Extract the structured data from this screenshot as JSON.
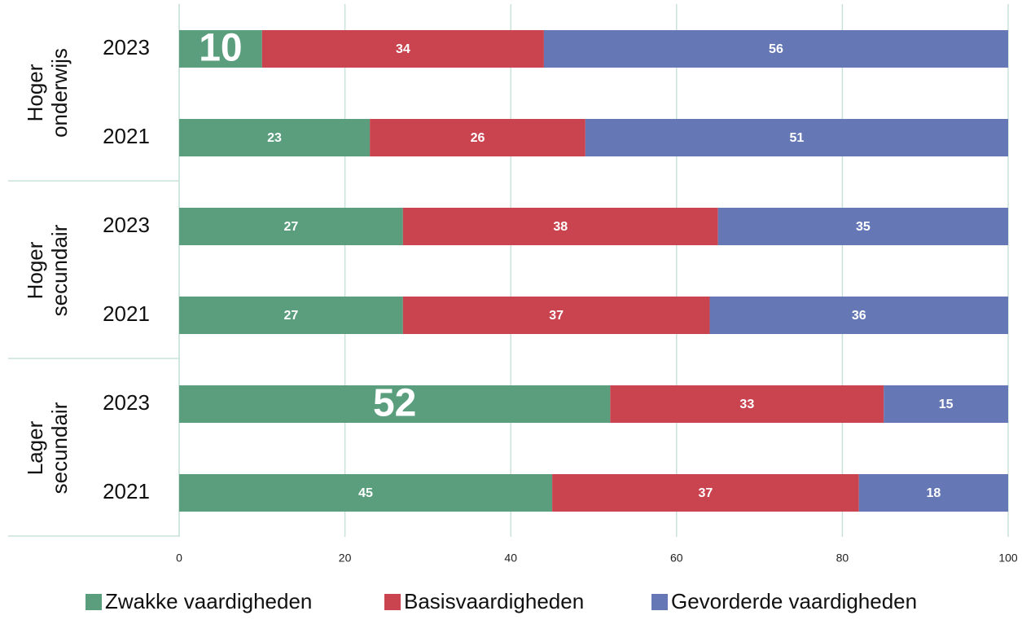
{
  "chart_data": {
    "type": "stacked-barh",
    "groups": [
      [
        "Hoger",
        "onderwijs"
      ],
      [
        "Hoger",
        "secundair"
      ],
      [
        "Lager",
        "secundair"
      ]
    ],
    "categories": [
      "2023",
      "2021",
      "2023",
      "2021",
      "2023",
      "2021"
    ],
    "series": [
      {
        "name": "Zwakke vaardigheden",
        "color": "#5a9e7e",
        "values": [
          10,
          23,
          27,
          27,
          52,
          45
        ]
      },
      {
        "name": "Basisvaardigheden",
        "color": "#c9444f",
        "values": [
          34,
          26,
          38,
          37,
          33,
          37
        ]
      },
      {
        "name": "Gevorderde vaardigheden",
        "color": "#6578b5",
        "values": [
          56,
          51,
          35,
          36,
          15,
          18
        ]
      }
    ],
    "xlim": [
      0,
      100
    ],
    "xticks": [
      0,
      20,
      40,
      60,
      80,
      100
    ],
    "grid": true
  }
}
